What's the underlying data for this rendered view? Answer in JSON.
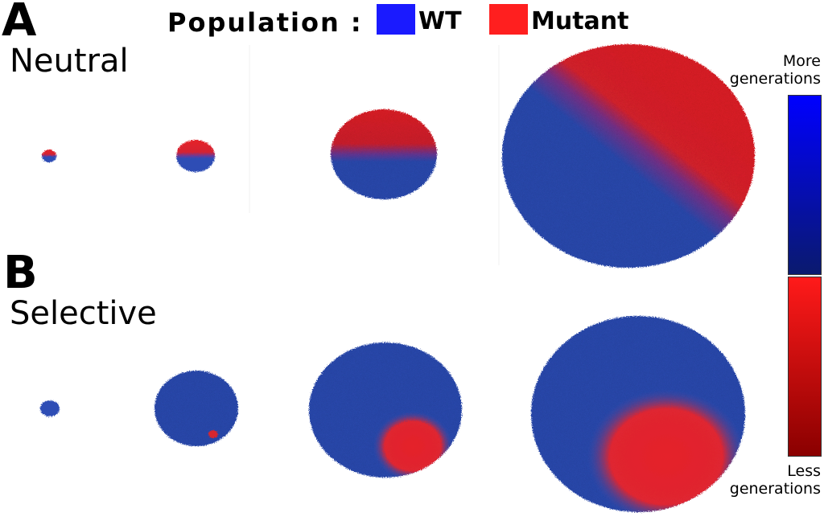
{
  "header": {
    "legend_title": "Population :",
    "items": [
      {
        "label": "WT",
        "color": "#1a1aff"
      },
      {
        "label": "Mutant",
        "color": "#ff2222"
      }
    ]
  },
  "panels": [
    {
      "letter": "A",
      "title": "Neutral"
    },
    {
      "letter": "B",
      "title": "Selective"
    }
  ],
  "colorbar": {
    "top_label": "More generations",
    "bottom_label": "Less generations",
    "blue_top": "#0000ff",
    "blue_bottom": "#0a1a6e",
    "red_top": "#ff1a1a",
    "red_bottom": "#8a0000"
  },
  "colors": {
    "wt": "#2e4db5",
    "mutant": "#e5222a"
  }
}
